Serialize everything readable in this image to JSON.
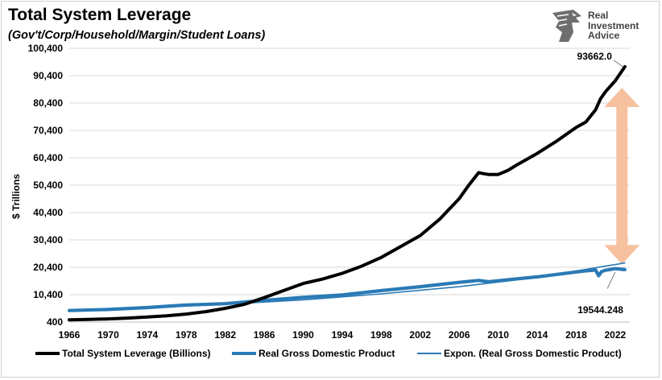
{
  "header": {
    "title": "Total System Leverage",
    "subtitle": "(Gov't/Corp/Household/Margin/Student Loans)"
  },
  "logo": {
    "line1": "Real",
    "line2": "Investment",
    "line3": "Advice",
    "icon": "eagle-head-icon"
  },
  "chart_data": {
    "type": "line",
    "title": "Total System Leverage",
    "subtitle": "(Gov't/Corp/Household/Margin/Student Loans)",
    "ylabel": "$ Trillions",
    "xlabel": "",
    "ylim": [
      400,
      100400
    ],
    "xlim": [
      1966,
      2023.5
    ],
    "y_ticks": [
      "400",
      "10,400",
      "20,400",
      "30,400",
      "40,400",
      "50,400",
      "60,400",
      "70,400",
      "80,400",
      "90,400",
      "100,400"
    ],
    "x_ticks": [
      "1966",
      "1970",
      "1974",
      "1978",
      "1982",
      "1986",
      "1990",
      "1994",
      "1998",
      "2002",
      "2006",
      "2010",
      "2014",
      "2018",
      "2022"
    ],
    "grid": "horizontal",
    "legend_position": "bottom",
    "series": [
      {
        "name": "Total System Leverage (Billions)",
        "color": "#000000",
        "x": [
          1966,
          1968,
          1970,
          1972,
          1974,
          1976,
          1978,
          1980,
          1982,
          1984,
          1986,
          1988,
          1990,
          1992,
          1994,
          1996,
          1998,
          2000,
          2002,
          2004,
          2006,
          2007,
          2008,
          2008.5,
          2009,
          2010,
          2011,
          2012,
          2014,
          2016,
          2018,
          2019,
          2020,
          2020.5,
          2021,
          2022,
          2023
        ],
        "values": [
          1200,
          1350,
          1550,
          1850,
          2250,
          2700,
          3300,
          4200,
          5400,
          6900,
          9300,
          11900,
          14500,
          16100,
          18200,
          20800,
          24000,
          28000,
          32000,
          38000,
          45500,
          50500,
          55000,
          54600,
          54300,
          54300,
          55800,
          58000,
          62000,
          66500,
          71500,
          73500,
          78000,
          82000,
          84500,
          88500,
          93662
        ]
      },
      {
        "name": "Real Gross Domestic Product",
        "color": "#2a7ab6",
        "x": [
          1966,
          1970,
          1974,
          1978,
          1982,
          1986,
          1990,
          1994,
          1998,
          2002,
          2006,
          2008,
          2009,
          2010,
          2014,
          2018,
          2019,
          2020,
          2020.3,
          2020.6,
          2021,
          2022,
          2023
        ],
        "values": [
          4600,
          5000,
          5700,
          6600,
          7100,
          8300,
          9400,
          10300,
          11900,
          13300,
          14900,
          15600,
          15100,
          15500,
          16900,
          18700,
          19100,
          19400,
          17300,
          18800,
          19300,
          19900,
          19544.248
        ]
      },
      {
        "name": "Expon. (Real Gross Domestic Product)",
        "color": "#2a7ab6",
        "x": [
          1966,
          1974,
          1982,
          1990,
          1998,
          2006,
          2014,
          2023
        ],
        "values": [
          4800,
          5700,
          6900,
          8500,
          10700,
          13300,
          16700,
          22000
        ]
      }
    ],
    "annotations": [
      {
        "text": "93662.0",
        "x": 2023,
        "y": 93662
      },
      {
        "text": "19544.248",
        "x": 2023,
        "y": 19544.248
      }
    ],
    "double_arrow": {
      "x": 2022.7,
      "from": 21500,
      "to": 86000,
      "color": "#f6c19f"
    }
  },
  "legend": [
    {
      "label": "Total System Leverage (Billions)",
      "style": "thick-black"
    },
    {
      "label": "Real Gross Domestic Product",
      "style": "thick-blue"
    },
    {
      "label": "Expon. (Real Gross Domestic Product)",
      "style": "thin-blue"
    }
  ]
}
